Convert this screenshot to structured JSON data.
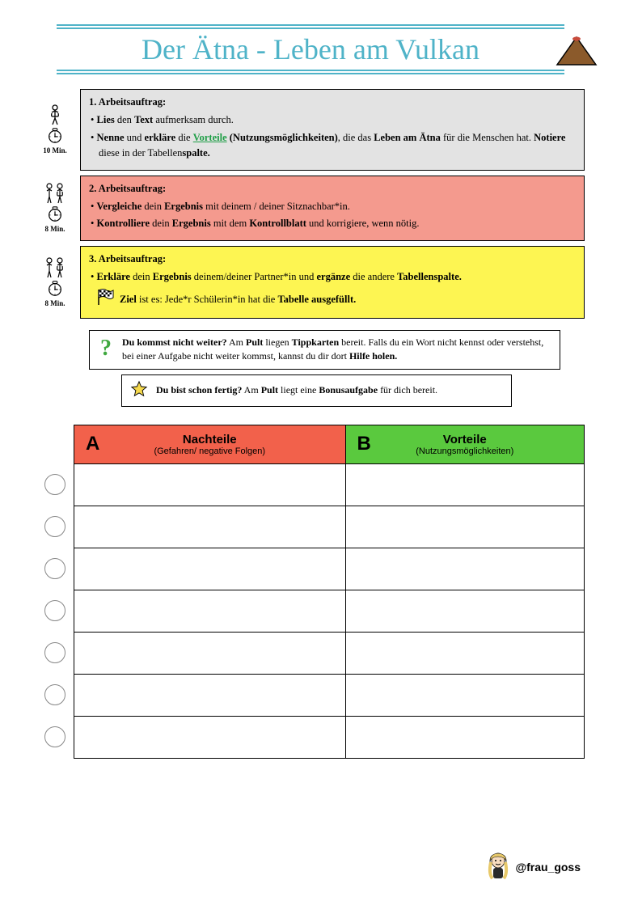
{
  "title": {
    "text": "Der Ätna - Leben am Vulkan",
    "color": "#4fb3c8",
    "line_color": "#4fb3c8",
    "volcano_fill": "#8b5a2b",
    "volcano_crater": "#c94a3b"
  },
  "tasks": [
    {
      "bg": "#e3e3e3",
      "heading": "1.   Arbeitsauftrag:",
      "time": "10 Min.",
      "people_svg": "single",
      "items_html": [
        "<b>Lies</b> den <b>Text</b> aufmerksam durch.",
        "<b>Nenne</b> und <b>erkläre</b> die <span class='link'>Vorteile</span> <b>(Nutzungsmöglichkeiten)</b>, die das <b>Leben am Ätna</b> für die Menschen hat. <b>Notiere</b> diese in der Tabellen<b>spalte.</b>"
      ]
    },
    {
      "bg": "#f49a8e",
      "heading": "2.   Arbeitsauftrag:",
      "time": "8 Min.",
      "people_svg": "pair",
      "items_html": [
        "<b>Vergleiche</b> dein <b>Ergebnis</b> mit deinem / deiner Sitznachbar*in.",
        "<b>Kontrolliere</b> dein <b>Ergebnis</b> mit dem <b>Kontrollblatt</b> und korrigiere, wenn nötig."
      ]
    },
    {
      "bg": "#fdf552",
      "heading": "3.   Arbeitsauftrag:",
      "time": "8 Min.",
      "people_svg": "pair",
      "items_html": [
        "<b>Erkläre</b> dein <b>Ergebnis</b> deinem/deiner Partner*in und <b>ergänze</b> die andere <b>Tabellenspalte.</b>"
      ],
      "goal_html": "<b>Ziel</b> ist es: Jede*r Schülerin*in hat die <b>Tabelle ausgefüllt.</b>"
    }
  ],
  "hint_html": "<b>Du kommst nicht weiter?</b> Am <b>Pult</b> liegen <b>Tippkarten</b> bereit. Falls du ein Wort nicht kennst oder verstehst, bei einer Aufgabe nicht weiter kommst, kannst du dir dort <b>Hilfe holen.</b>",
  "bonus_html": "<b>Du bist schon fertig?</b> Am <b>Pult</b> liegt eine <b>Bonusaufgabe</b> für dich bereit.",
  "table": {
    "col_a": {
      "bg": "#f2614b",
      "letter": "A",
      "title": "Nachteile",
      "sub": "(Gefahren/ negative Folgen)"
    },
    "col_b": {
      "bg": "#5ac93e",
      "letter": "B",
      "title": "Vorteile",
      "sub": "(Nutzungsmöglichkeiten)"
    },
    "rows": 7
  },
  "footer": "@frau_goss",
  "icons": {
    "question_color": "#3fa83f",
    "star_fill": "#f6d94c"
  }
}
